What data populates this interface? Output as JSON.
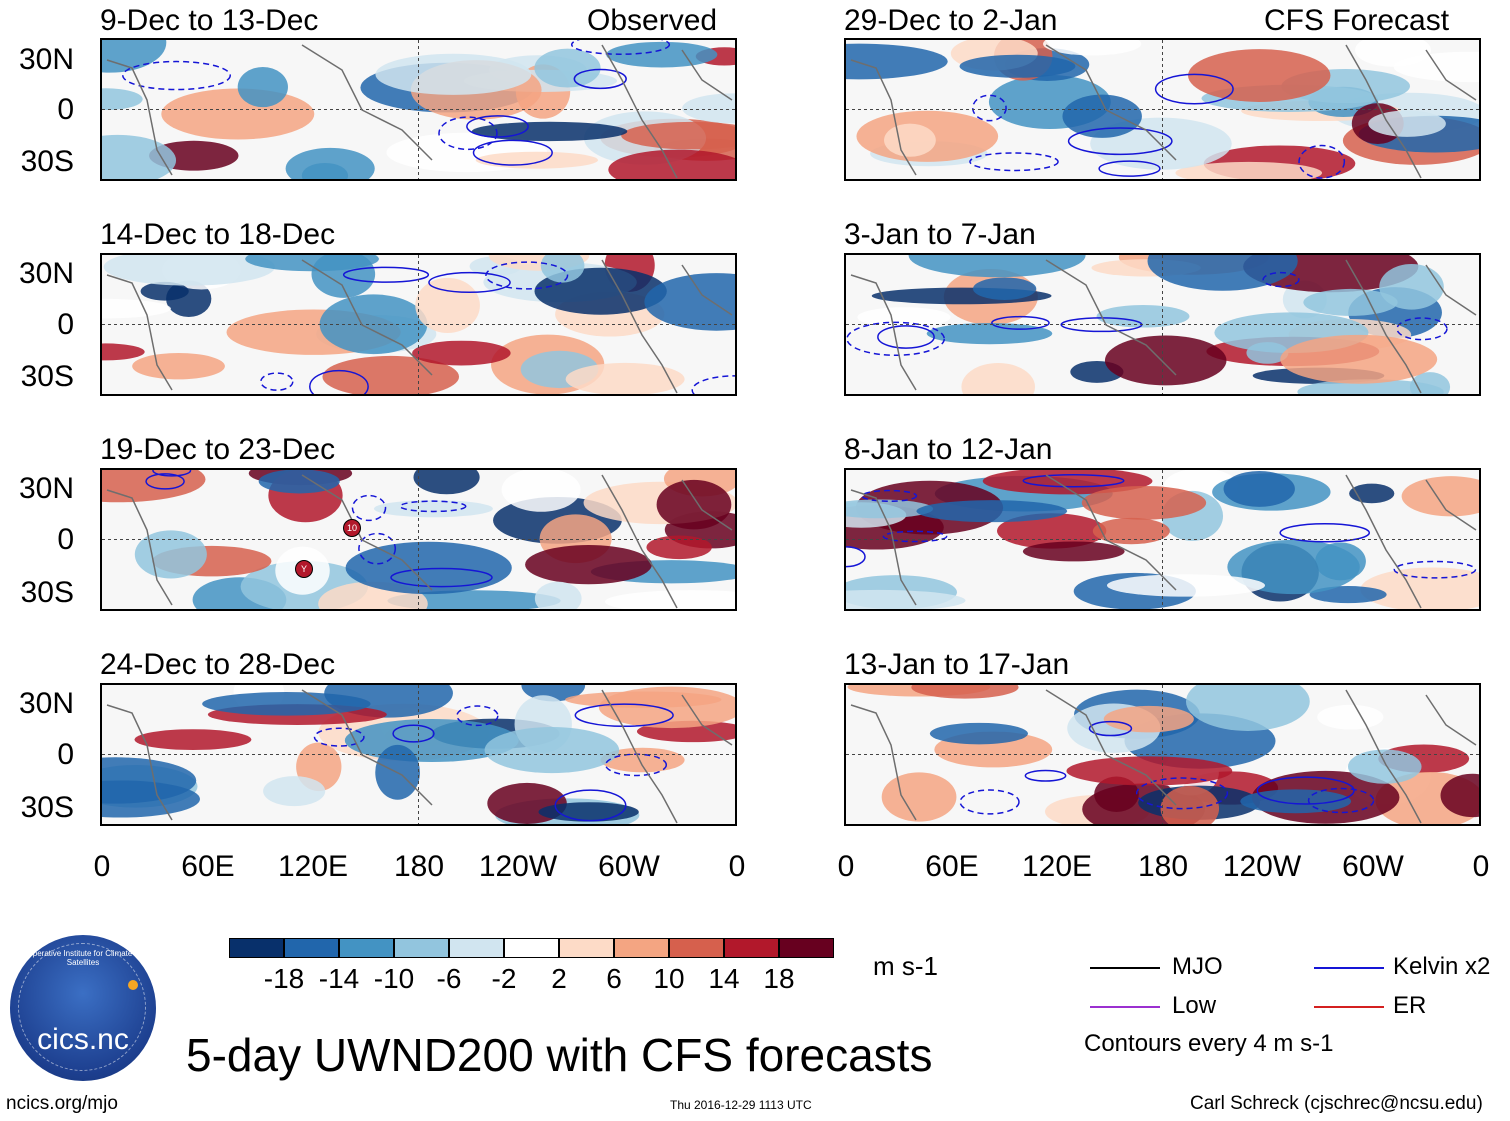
{
  "header": {
    "left_title": "Observed",
    "right_title": "CFS Forecast"
  },
  "panels": {
    "observed": [
      {
        "period": "9-Dec to 13-Dec"
      },
      {
        "period": "14-Dec to 18-Dec"
      },
      {
        "period": "19-Dec to 23-Dec"
      },
      {
        "period": "24-Dec to 28-Dec"
      }
    ],
    "forecast": [
      {
        "period": "29-Dec to 2-Jan"
      },
      {
        "period": "3-Jan to 7-Jan"
      },
      {
        "period": "8-Jan to 12-Jan"
      },
      {
        "period": "13-Jan to 17-Jan"
      }
    ]
  },
  "axes": {
    "lat_labels": [
      "30N",
      "0",
      "30S"
    ],
    "lon_labels": [
      "0",
      "60E",
      "120E",
      "180",
      "120W",
      "60W",
      "0"
    ]
  },
  "storm_markers": [
    "10",
    "Y"
  ],
  "colorbar": {
    "colors": [
      "#08306b",
      "#2166ac",
      "#4393c3",
      "#92c5de",
      "#d1e5f0",
      "#ffffff",
      "#fddbc7",
      "#f4a582",
      "#d6604d",
      "#b2182b",
      "#67001f"
    ],
    "labels": [
      "-18",
      "-14",
      "-10",
      "-6",
      "-2",
      "2",
      "6",
      "10",
      "14",
      "18"
    ],
    "units": "m s-1"
  },
  "legend": {
    "items": [
      {
        "label": "MJO",
        "color": "#000000"
      },
      {
        "label": "Kelvin x2",
        "color": "#1515d6"
      },
      {
        "label": "Low",
        "color": "#9b30d0"
      },
      {
        "label": "ER",
        "color": "#d42020"
      }
    ],
    "note": "Contours every 4 m s-1"
  },
  "main_title": "5-day UWND200 with CFS forecasts",
  "footer": {
    "logo_text": "cics.nc",
    "logo_ring": "Cooperative Institute for Climate and Satellites",
    "url": "ncics.org/mjo",
    "timestamp": "Thu 2016-12-29 1113 UTC",
    "credit": "Carl Schreck (cjschrec@ncsu.edu)"
  }
}
